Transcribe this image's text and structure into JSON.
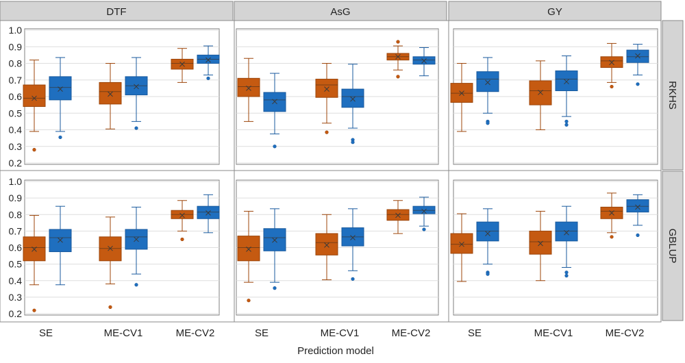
{
  "colors": {
    "orange": "#c55a11",
    "orange_dark": "#9c450a",
    "blue": "#1f6fbf",
    "blue_dark": "#195a9e",
    "strip_fill": "#d4d4d4",
    "strip_border": "#8a8a8a",
    "grid": "#dedede",
    "axis_text": "#222222"
  },
  "chart_data": {
    "type": "boxplot",
    "title": "",
    "xlabel": "Prediction model",
    "ylabel": "",
    "ylim": [
      0.2,
      1.0
    ],
    "yticks": [
      "1.0",
      "0.9",
      "0.8",
      "0.7",
      "0.6",
      "0.5",
      "0.4",
      "0.3",
      "0.2"
    ],
    "categories": [
      "SE",
      "ME-CV1",
      "ME-CV2"
    ],
    "columns": [
      "DTF",
      "AsG",
      "GY"
    ],
    "rows": [
      "RKHS",
      "GBLUP"
    ],
    "legend": null,
    "series_colors": [
      "orange",
      "blue"
    ],
    "panels": [
      {
        "row": "RKHS",
        "column": "DTF",
        "groups": [
          {
            "category": "SE",
            "boxes": [
              {
                "min": 0.39,
                "q1": 0.54,
                "median": 0.59,
                "q3": 0.67,
                "max": 0.82,
                "mean": 0.59,
                "outliers": [
                  0.28
                ]
              },
              {
                "min": 0.39,
                "q1": 0.58,
                "median": 0.655,
                "q3": 0.72,
                "max": 0.835,
                "mean": 0.645,
                "outliers": [
                  0.355
                ]
              }
            ]
          },
          {
            "category": "ME-CV1",
            "boxes": [
              {
                "min": 0.405,
                "q1": 0.555,
                "median": 0.63,
                "q3": 0.685,
                "max": 0.8,
                "mean": 0.615,
                "outliers": []
              },
              {
                "min": 0.45,
                "q1": 0.61,
                "median": 0.665,
                "q3": 0.72,
                "max": 0.835,
                "mean": 0.66,
                "outliers": [
                  0.41
                ]
              }
            ]
          },
          {
            "category": "ME-CV2",
            "boxes": [
              {
                "min": 0.685,
                "q1": 0.765,
                "median": 0.8,
                "q3": 0.825,
                "max": 0.89,
                "mean": 0.795,
                "outliers": []
              },
              {
                "min": 0.73,
                "q1": 0.8,
                "median": 0.825,
                "q3": 0.85,
                "max": 0.905,
                "mean": 0.82,
                "outliers": [
                  0.71
                ]
              }
            ]
          }
        ]
      },
      {
        "row": "RKHS",
        "column": "AsG",
        "groups": [
          {
            "category": "SE",
            "boxes": [
              {
                "min": 0.45,
                "q1": 0.6,
                "median": 0.66,
                "q3": 0.71,
                "max": 0.83,
                "mean": 0.65,
                "outliers": []
              },
              {
                "min": 0.375,
                "q1": 0.51,
                "median": 0.58,
                "q3": 0.625,
                "max": 0.74,
                "mean": 0.57,
                "outliers": [
                  0.3
                ]
              }
            ]
          },
          {
            "category": "ME-CV1",
            "boxes": [
              {
                "min": 0.44,
                "q1": 0.595,
                "median": 0.67,
                "q3": 0.705,
                "max": 0.8,
                "mean": 0.645,
                "outliers": [
                  0.385
                ]
              },
              {
                "min": 0.41,
                "q1": 0.535,
                "median": 0.6,
                "q3": 0.645,
                "max": 0.795,
                "mean": 0.585,
                "outliers": [
                  0.34,
                  0.325
                ]
              }
            ]
          },
          {
            "category": "ME-CV2",
            "boxes": [
              {
                "min": 0.76,
                "q1": 0.82,
                "median": 0.84,
                "q3": 0.86,
                "max": 0.905,
                "mean": 0.84,
                "outliers": [
                  0.93,
                  0.72
                ]
              },
              {
                "min": 0.725,
                "q1": 0.795,
                "median": 0.82,
                "q3": 0.84,
                "max": 0.895,
                "mean": 0.815,
                "outliers": []
              }
            ]
          }
        ]
      },
      {
        "row": "RKHS",
        "column": "GY",
        "groups": [
          {
            "category": "SE",
            "boxes": [
              {
                "min": 0.39,
                "q1": 0.565,
                "median": 0.62,
                "q3": 0.68,
                "max": 0.8,
                "mean": 0.62,
                "outliers": []
              },
              {
                "min": 0.5,
                "q1": 0.63,
                "median": 0.705,
                "q3": 0.75,
                "max": 0.835,
                "mean": 0.685,
                "outliers": [
                  0.45,
                  0.44
                ]
              }
            ]
          },
          {
            "category": "ME-CV1",
            "boxes": [
              {
                "min": 0.4,
                "q1": 0.55,
                "median": 0.635,
                "q3": 0.695,
                "max": 0.815,
                "mean": 0.625,
                "outliers": []
              },
              {
                "min": 0.48,
                "q1": 0.635,
                "median": 0.705,
                "q3": 0.755,
                "max": 0.845,
                "mean": 0.69,
                "outliers": [
                  0.45,
                  0.43
                ]
              }
            ]
          },
          {
            "category": "ME-CV2",
            "boxes": [
              {
                "min": 0.685,
                "q1": 0.775,
                "median": 0.815,
                "q3": 0.84,
                "max": 0.92,
                "mean": 0.805,
                "outliers": [
                  0.66
                ]
              },
              {
                "min": 0.73,
                "q1": 0.805,
                "median": 0.84,
                "q3": 0.88,
                "max": 0.915,
                "mean": 0.845,
                "outliers": [
                  0.675
                ]
              }
            ]
          }
        ]
      },
      {
        "row": "GBLUP",
        "column": "DTF",
        "groups": [
          {
            "category": "SE",
            "boxes": [
              {
                "min": 0.375,
                "q1": 0.52,
                "median": 0.6,
                "q3": 0.665,
                "max": 0.795,
                "mean": 0.59,
                "outliers": [
                  0.22
                ]
              },
              {
                "min": 0.375,
                "q1": 0.575,
                "median": 0.66,
                "q3": 0.71,
                "max": 0.85,
                "mean": 0.645,
                "outliers": []
              }
            ]
          },
          {
            "category": "ME-CV1",
            "boxes": [
              {
                "min": 0.38,
                "q1": 0.52,
                "median": 0.595,
                "q3": 0.665,
                "max": 0.785,
                "mean": 0.595,
                "outliers": [
                  0.24
                ]
              },
              {
                "min": 0.44,
                "q1": 0.59,
                "median": 0.665,
                "q3": 0.71,
                "max": 0.845,
                "mean": 0.65,
                "outliers": [
                  0.375
                ]
              }
            ]
          },
          {
            "category": "ME-CV2",
            "boxes": [
              {
                "min": 0.7,
                "q1": 0.775,
                "median": 0.8,
                "q3": 0.825,
                "max": 0.885,
                "mean": 0.795,
                "outliers": [
                  0.65
                ]
              },
              {
                "min": 0.69,
                "q1": 0.775,
                "median": 0.815,
                "q3": 0.85,
                "max": 0.92,
                "mean": 0.81,
                "outliers": []
              }
            ]
          }
        ]
      },
      {
        "row": "GBLUP",
        "column": "AsG",
        "groups": [
          {
            "category": "SE",
            "boxes": [
              {
                "min": 0.39,
                "q1": 0.52,
                "median": 0.6,
                "q3": 0.67,
                "max": 0.82,
                "mean": 0.59,
                "outliers": [
                  0.28
                ]
              },
              {
                "min": 0.39,
                "q1": 0.58,
                "median": 0.66,
                "q3": 0.715,
                "max": 0.835,
                "mean": 0.645,
                "outliers": [
                  0.355
                ]
              }
            ]
          },
          {
            "category": "ME-CV1",
            "boxes": [
              {
                "min": 0.405,
                "q1": 0.555,
                "median": 0.63,
                "q3": 0.685,
                "max": 0.8,
                "mean": 0.615,
                "outliers": []
              },
              {
                "min": 0.46,
                "q1": 0.61,
                "median": 0.665,
                "q3": 0.72,
                "max": 0.835,
                "mean": 0.66,
                "outliers": [
                  0.41
                ]
              }
            ]
          },
          {
            "category": "ME-CV2",
            "boxes": [
              {
                "min": 0.685,
                "q1": 0.765,
                "median": 0.8,
                "q3": 0.83,
                "max": 0.885,
                "mean": 0.795,
                "outliers": []
              },
              {
                "min": 0.73,
                "q1": 0.805,
                "median": 0.825,
                "q3": 0.85,
                "max": 0.905,
                "mean": 0.82,
                "outliers": [
                  0.71
                ]
              }
            ]
          }
        ]
      },
      {
        "row": "GBLUP",
        "column": "GY",
        "groups": [
          {
            "category": "SE",
            "boxes": [
              {
                "min": 0.395,
                "q1": 0.565,
                "median": 0.62,
                "q3": 0.685,
                "max": 0.805,
                "mean": 0.62,
                "outliers": []
              },
              {
                "min": 0.5,
                "q1": 0.64,
                "median": 0.7,
                "q3": 0.755,
                "max": 0.835,
                "mean": 0.685,
                "outliers": [
                  0.45,
                  0.44
                ]
              }
            ]
          },
          {
            "category": "ME-CV1",
            "boxes": [
              {
                "min": 0.4,
                "q1": 0.56,
                "median": 0.635,
                "q3": 0.7,
                "max": 0.82,
                "mean": 0.625,
                "outliers": []
              },
              {
                "min": 0.48,
                "q1": 0.64,
                "median": 0.7,
                "q3": 0.755,
                "max": 0.85,
                "mean": 0.69,
                "outliers": [
                  0.45,
                  0.43
                ]
              }
            ]
          },
          {
            "category": "ME-CV2",
            "boxes": [
              {
                "min": 0.69,
                "q1": 0.775,
                "median": 0.82,
                "q3": 0.845,
                "max": 0.93,
                "mean": 0.81,
                "outliers": [
                  0.665
                ]
              },
              {
                "min": 0.735,
                "q1": 0.815,
                "median": 0.85,
                "q3": 0.89,
                "max": 0.92,
                "mean": 0.845,
                "outliers": [
                  0.675
                ]
              }
            ]
          }
        ]
      }
    ]
  }
}
